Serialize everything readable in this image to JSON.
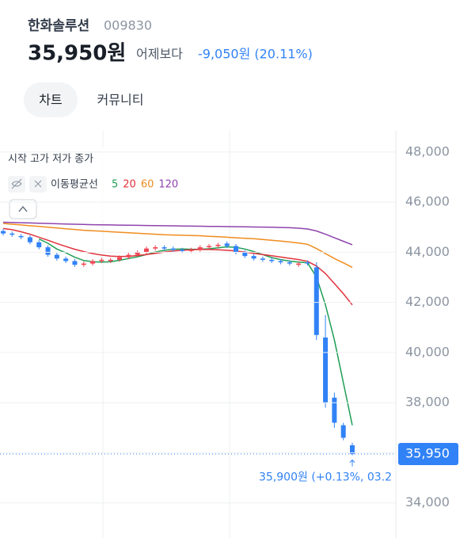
{
  "header": {
    "name": "한화솔루션",
    "code": "009830",
    "price": "35,950원",
    "compare_label": "어제보다",
    "change": "-9,050원 (20.11%)"
  },
  "tabs": [
    "차트",
    "커뮤니티"
  ],
  "chart_data": {
    "type": "candlestick",
    "legend_ohlc": "시작 고가 저가 종가",
    "ma_label": "이동평균선",
    "up_color": "#f04452",
    "down_color": "#3182f6",
    "open": [
      44850,
      44750,
      44650,
      44600,
      44400,
      44200,
      43900,
      43750,
      43650,
      43500,
      43550,
      43650,
      43650,
      43700,
      43800,
      43900,
      44000,
      44150,
      44200,
      44150,
      44100,
      44050,
      44100,
      44200,
      44250,
      44350,
      44250,
      44000,
      43850,
      43750,
      43700,
      43650,
      43600,
      43500,
      43600,
      43400,
      40600,
      38200,
      37100,
      36300
    ],
    "high": [
      44930,
      44830,
      44730,
      44680,
      44480,
      44280,
      43980,
      43830,
      43730,
      43630,
      43730,
      43780,
      43780,
      43880,
      43980,
      44080,
      44230,
      44280,
      44280,
      44230,
      44180,
      44180,
      44280,
      44330,
      44380,
      44430,
      44330,
      44080,
      43930,
      43830,
      43780,
      43730,
      43680,
      43630,
      43680,
      43600,
      41500,
      38400,
      37200,
      36400
    ],
    "low": [
      44670,
      44620,
      44520,
      44320,
      44120,
      43820,
      43670,
      43570,
      43420,
      43420,
      43470,
      43570,
      43570,
      43620,
      43720,
      43820,
      43920,
      44070,
      44070,
      44020,
      43970,
      43970,
      44020,
      44120,
      44170,
      44170,
      43920,
      43770,
      43670,
      43620,
      43570,
      43520,
      43470,
      43420,
      43470,
      40500,
      37800,
      37000,
      36500,
      35900
    ],
    "close": [
      44750,
      44700,
      44600,
      44400,
      44200,
      43900,
      43750,
      43650,
      43500,
      43550,
      43650,
      43700,
      43700,
      43800,
      43900,
      44000,
      44150,
      44200,
      44150,
      44100,
      44050,
      44100,
      44200,
      44250,
      44300,
      44250,
      44000,
      43850,
      43750,
      43700,
      43650,
      43600,
      43550,
      43550,
      43550,
      40700,
      38000,
      37200,
      36600,
      35950
    ],
    "series": [
      {
        "name": "5",
        "color": "#1e9e55",
        "values": [
          null,
          null,
          null,
          null,
          44530,
          44360,
          44130,
          43980,
          43800,
          43670,
          43620,
          43610,
          43620,
          43680,
          43750,
          43820,
          43910,
          44010,
          44080,
          44120,
          44130,
          44120,
          44120,
          44140,
          44180,
          44220,
          44200,
          44130,
          44030,
          43910,
          43790,
          43710,
          43650,
          43610,
          43580,
          43010,
          41900,
          40500,
          38800,
          37100
        ]
      },
      {
        "name": "20",
        "color": "#e0323c",
        "values": [
          44950,
          44900,
          44820,
          44720,
          44600,
          44480,
          44350,
          44230,
          44120,
          44030,
          43950,
          43890,
          43850,
          43830,
          43840,
          43870,
          43910,
          43960,
          44010,
          44050,
          44080,
          44100,
          44110,
          44110,
          44100,
          44080,
          44050,
          44010,
          43960,
          43910,
          43860,
          43810,
          43760,
          43710,
          43640,
          43450,
          43150,
          42750,
          42350,
          41900
        ]
      },
      {
        "name": "60",
        "color": "#f08c1e",
        "values": [
          45150,
          45120,
          45090,
          45060,
          45030,
          45000,
          44970,
          44940,
          44910,
          44880,
          44860,
          44840,
          44820,
          44800,
          44780,
          44760,
          44740,
          44720,
          44700,
          44690,
          44680,
          44670,
          44660,
          44640,
          44620,
          44600,
          44580,
          44560,
          44540,
          44510,
          44480,
          44450,
          44410,
          44370,
          44320,
          44150,
          43950,
          43750,
          43580,
          43400
        ]
      },
      {
        "name": "120",
        "color": "#8e44ad",
        "values": [
          45200,
          45190,
          45180,
          45170,
          45160,
          45150,
          45140,
          45130,
          45120,
          45110,
          45100,
          45095,
          45090,
          45085,
          45080,
          45075,
          45070,
          45065,
          45060,
          45055,
          45050,
          45045,
          45040,
          45035,
          45030,
          45025,
          45020,
          45015,
          45010,
          45005,
          45000,
          44990,
          44980,
          44960,
          44930,
          44850,
          44720,
          44580,
          44440,
          44300
        ]
      }
    ],
    "ylim": [
      32600,
      48850
    ],
    "yticks": [
      {
        "value": 34000,
        "label": "34,000"
      },
      {
        "value": 36000,
        "label": "36,000"
      },
      {
        "value": 38000,
        "label": "38,000"
      },
      {
        "value": 40000,
        "label": "40,000"
      },
      {
        "value": 42000,
        "label": "42,000"
      },
      {
        "value": 44000,
        "label": "44,000"
      },
      {
        "value": 46000,
        "label": "46,000"
      },
      {
        "value": 48000,
        "label": "48,000"
      }
    ],
    "grid": true,
    "current_price": {
      "value": 35950,
      "label": "35,950"
    },
    "annotation": "35,900원 (+0.13%, 03.2"
  }
}
